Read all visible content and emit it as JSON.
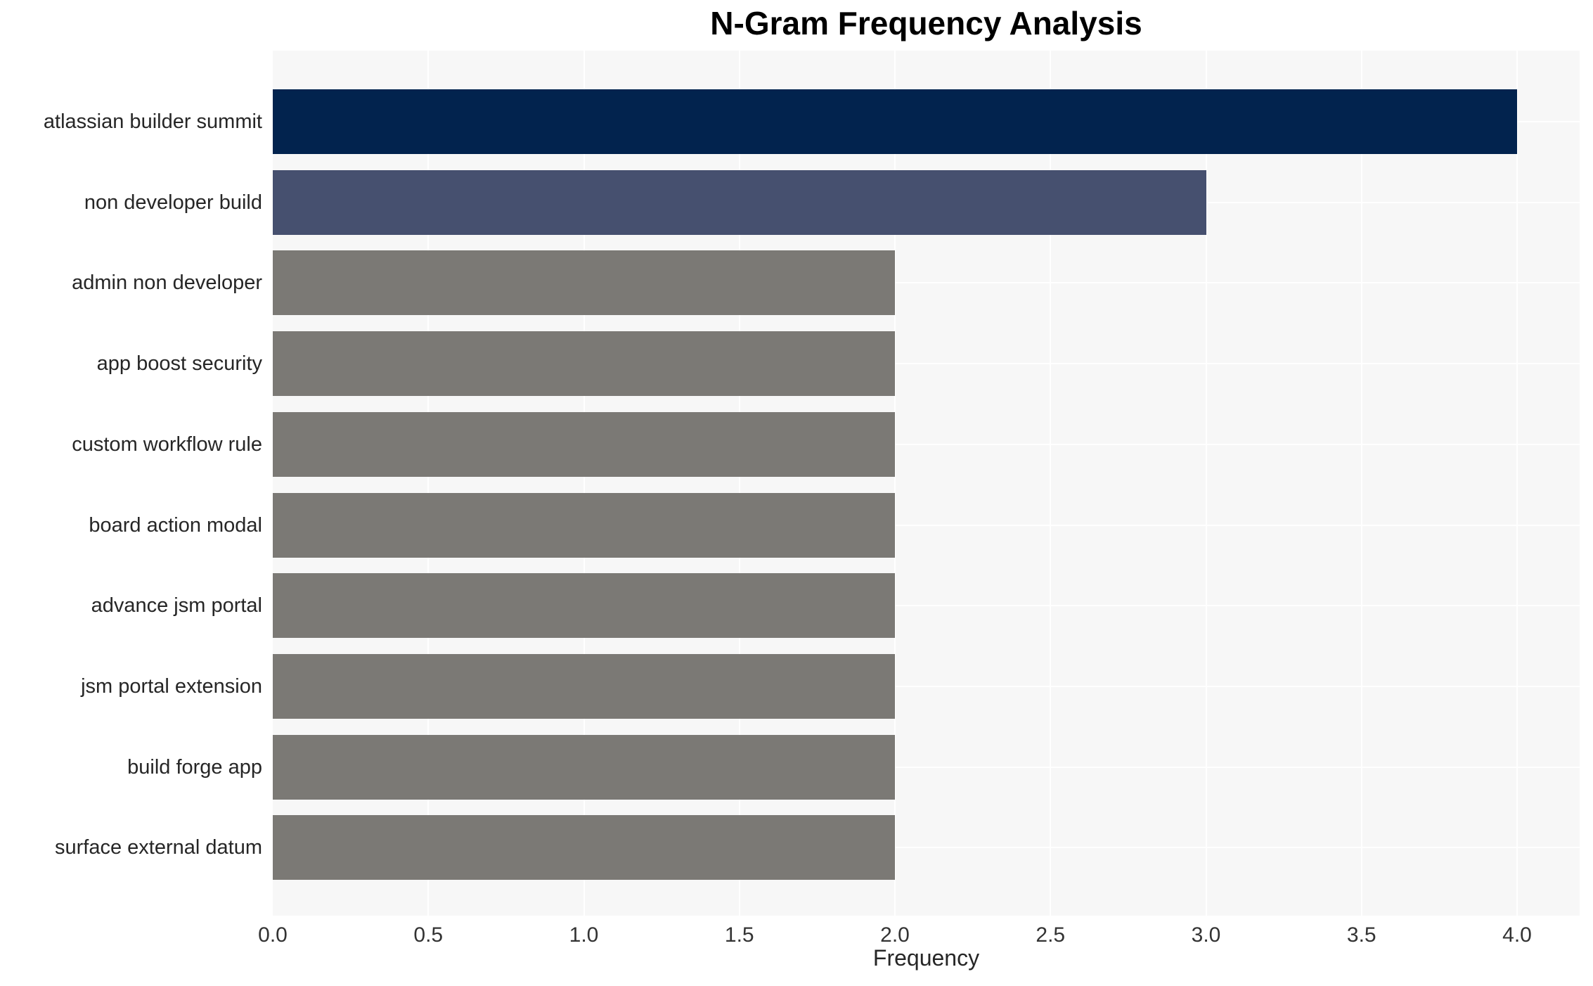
{
  "chart_data": {
    "type": "bar",
    "orientation": "horizontal",
    "title": "N-Gram Frequency Analysis",
    "xlabel": "Frequency",
    "ylabel": "",
    "categories": [
      "atlassian builder summit",
      "non developer build",
      "admin non developer",
      "app boost security",
      "custom workflow rule",
      "board action modal",
      "advance jsm portal",
      "jsm portal extension",
      "build forge app",
      "surface external datum"
    ],
    "values": [
      4,
      3,
      2,
      2,
      2,
      2,
      2,
      2,
      2,
      2
    ],
    "xlim": [
      0.0,
      4.2
    ],
    "xticks": [
      0.0,
      0.5,
      1.0,
      1.5,
      2.0,
      2.5,
      3.0,
      3.5,
      4.0
    ],
    "xtick_labels": [
      "0.0",
      "0.5",
      "1.0",
      "1.5",
      "2.0",
      "2.5",
      "3.0",
      "3.5",
      "4.0"
    ],
    "grid": true,
    "legend": false,
    "colors": {
      "bar_colors": [
        "#02234e",
        "#46506f",
        "#7b7975",
        "#7b7975",
        "#7b7975",
        "#7b7975",
        "#7b7975",
        "#7b7975",
        "#7b7975",
        "#7b7975"
      ],
      "plot_background": "#f7f7f7",
      "gridline": "#ffffff",
      "tick_text": "#333333",
      "category_text": "#262626",
      "title_text": "#000000",
      "page_background": "#ffffff"
    }
  }
}
